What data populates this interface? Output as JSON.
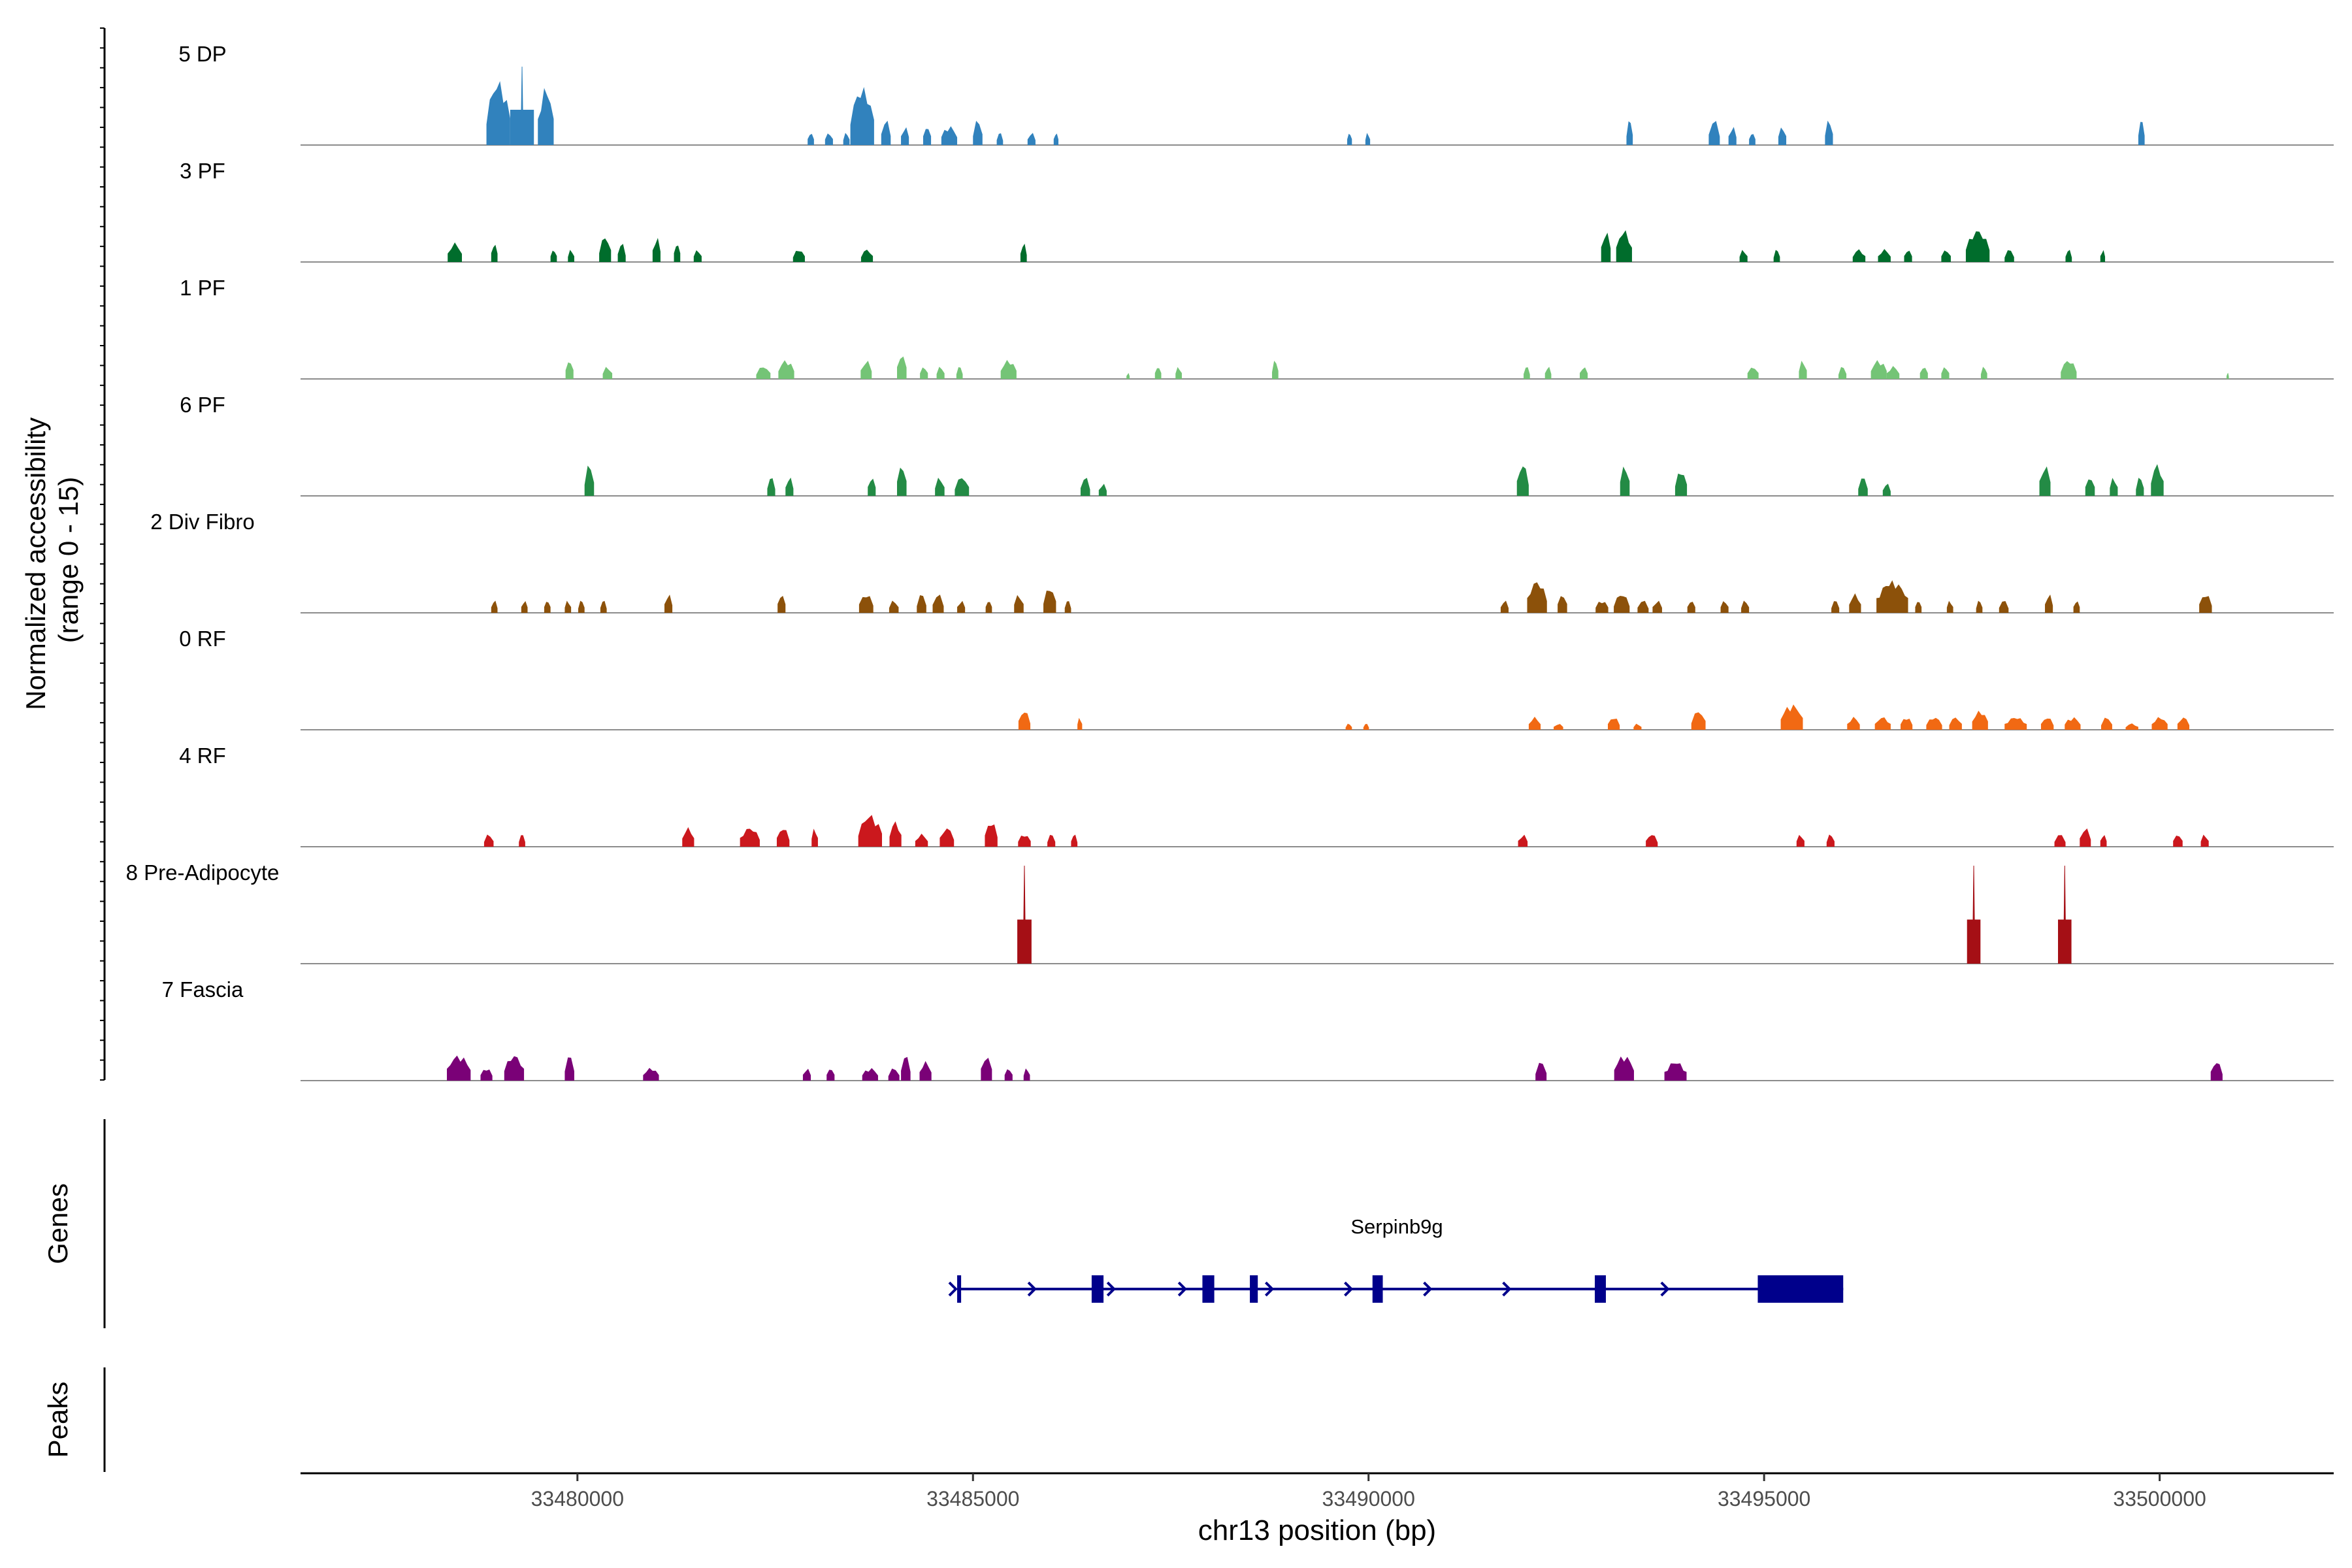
{
  "chart_data": {
    "type": "area",
    "title": "",
    "ylabel": "Normalized accessibility\n(range 0 - 15)",
    "ylabel_lines": [
      "Normalized accessibility",
      "(range 0 - 15)"
    ],
    "xlabel": "chr13 position (bp)",
    "xlim": [
      33476500,
      33502200
    ],
    "ylim": [
      0,
      15
    ],
    "x_ticks": [
      33480000,
      33485000,
      33490000,
      33495000,
      33500000
    ],
    "x_tick_labels": [
      "33480000",
      "33485000",
      "33490000",
      "33495000",
      "33500000"
    ],
    "tracks": [
      {
        "name": "5 DP",
        "color": "#3182bd",
        "peaks": [
          [
            33479000,
            300,
            10
          ],
          [
            33479300,
            300,
            12
          ],
          [
            33479600,
            200,
            9
          ],
          [
            33482950,
            80,
            2
          ],
          [
            33483180,
            100,
            2
          ],
          [
            33483400,
            80,
            2
          ],
          [
            33483600,
            300,
            9
          ],
          [
            33483900,
            120,
            4
          ],
          [
            33484140,
            100,
            3
          ],
          [
            33484420,
            100,
            3
          ],
          [
            33484700,
            200,
            3
          ],
          [
            33485060,
            120,
            4
          ],
          [
            33485340,
            80,
            2
          ],
          [
            33485740,
            100,
            2
          ],
          [
            33486050,
            60,
            2
          ],
          [
            33489760,
            60,
            2
          ],
          [
            33489990,
            60,
            2
          ],
          [
            33493300,
            80,
            4
          ],
          [
            33494370,
            140,
            4
          ],
          [
            33494600,
            100,
            3
          ],
          [
            33494850,
            80,
            2
          ],
          [
            33495230,
            100,
            3
          ],
          [
            33495820,
            100,
            4
          ],
          [
            33499770,
            80,
            4
          ]
        ]
      },
      {
        "name": "3 PF",
        "color": "#006d2c",
        "peaks": [
          [
            33478450,
            180,
            3
          ],
          [
            33478950,
            80,
            3
          ],
          [
            33479700,
            80,
            2
          ],
          [
            33479920,
            80,
            2
          ],
          [
            33480350,
            150,
            4
          ],
          [
            33480560,
            100,
            3
          ],
          [
            33481000,
            100,
            4
          ],
          [
            33481260,
            80,
            3
          ],
          [
            33481520,
            100,
            2
          ],
          [
            33482800,
            150,
            2
          ],
          [
            33483660,
            150,
            2
          ],
          [
            33485640,
            80,
            3
          ],
          [
            33493000,
            120,
            5
          ],
          [
            33493230,
            200,
            5
          ],
          [
            33494740,
            100,
            2
          ],
          [
            33495160,
            80,
            2
          ],
          [
            33496200,
            160,
            2
          ],
          [
            33496520,
            160,
            2
          ],
          [
            33496820,
            100,
            2
          ],
          [
            33497300,
            120,
            2
          ],
          [
            33497700,
            300,
            5
          ],
          [
            33498100,
            120,
            2
          ],
          [
            33498850,
            80,
            2
          ],
          [
            33499280,
            60,
            2
          ]
        ]
      },
      {
        "name": "1 PF",
        "color": "#74c476",
        "peaks": [
          [
            33479900,
            100,
            3
          ],
          [
            33480380,
            120,
            2
          ],
          [
            33482350,
            180,
            2
          ],
          [
            33482640,
            200,
            3
          ],
          [
            33483650,
            140,
            3
          ],
          [
            33484100,
            120,
            4
          ],
          [
            33484380,
            100,
            2
          ],
          [
            33484590,
            100,
            2
          ],
          [
            33484830,
            80,
            2
          ],
          [
            33485450,
            200,
            3
          ],
          [
            33486960,
            40,
            1
          ],
          [
            33487340,
            80,
            2
          ],
          [
            33487600,
            80,
            2
          ],
          [
            33488820,
            80,
            3
          ],
          [
            33492000,
            80,
            2
          ],
          [
            33492270,
            80,
            2
          ],
          [
            33492720,
            100,
            2
          ],
          [
            33494860,
            140,
            2
          ],
          [
            33495490,
            100,
            3
          ],
          [
            33495990,
            100,
            2
          ],
          [
            33496450,
            200,
            3
          ],
          [
            33496630,
            160,
            2
          ],
          [
            33497020,
            100,
            2
          ],
          [
            33497290,
            100,
            2
          ],
          [
            33497780,
            80,
            2
          ],
          [
            33498850,
            200,
            3
          ],
          [
            33500860,
            30,
            1
          ]
        ]
      },
      {
        "name": "6 PF",
        "color": "#238b45",
        "peaks": [
          [
            33480150,
            120,
            5
          ],
          [
            33482450,
            100,
            3
          ],
          [
            33482680,
            100,
            3
          ],
          [
            33483720,
            100,
            3
          ],
          [
            33484100,
            120,
            5
          ],
          [
            33484580,
            120,
            3
          ],
          [
            33484860,
            180,
            3
          ],
          [
            33486420,
            120,
            3
          ],
          [
            33486640,
            100,
            2
          ],
          [
            33491950,
            150,
            5
          ],
          [
            33493240,
            120,
            5
          ],
          [
            33493950,
            150,
            4
          ],
          [
            33496250,
            120,
            3
          ],
          [
            33496550,
            100,
            2
          ],
          [
            33498550,
            140,
            5
          ],
          [
            33499120,
            120,
            3
          ],
          [
            33499420,
            100,
            3
          ],
          [
            33499750,
            100,
            3
          ],
          [
            33499970,
            160,
            5
          ]
        ]
      },
      {
        "name": "2 Div Fibro",
        "color": "#8c510a",
        "peaks": [
          [
            33478950,
            80,
            2
          ],
          [
            33479330,
            80,
            2
          ],
          [
            33479620,
            80,
            2
          ],
          [
            33479880,
            80,
            2
          ],
          [
            33480050,
            80,
            2
          ],
          [
            33480330,
            80,
            2
          ],
          [
            33481150,
            100,
            3
          ],
          [
            33482580,
            100,
            3
          ],
          [
            33483650,
            180,
            3
          ],
          [
            33484000,
            120,
            2
          ],
          [
            33484350,
            120,
            3
          ],
          [
            33484560,
            140,
            3
          ],
          [
            33484850,
            100,
            2
          ],
          [
            33485200,
            80,
            2
          ],
          [
            33485580,
            120,
            3
          ],
          [
            33485970,
            160,
            4
          ],
          [
            33486200,
            80,
            2
          ],
          [
            33491720,
            100,
            2
          ],
          [
            33492130,
            250,
            5
          ],
          [
            33492450,
            120,
            3
          ],
          [
            33492950,
            160,
            2
          ],
          [
            33493200,
            200,
            3
          ],
          [
            33493470,
            140,
            2
          ],
          [
            33493650,
            120,
            2
          ],
          [
            33494080,
            100,
            2
          ],
          [
            33494500,
            100,
            2
          ],
          [
            33494760,
            100,
            2
          ],
          [
            33495900,
            100,
            2
          ],
          [
            33496150,
            150,
            3
          ],
          [
            33496620,
            400,
            5
          ],
          [
            33496950,
            80,
            2
          ],
          [
            33497350,
            80,
            2
          ],
          [
            33497720,
            80,
            2
          ],
          [
            33498030,
            120,
            2
          ],
          [
            33498600,
            100,
            3
          ],
          [
            33498950,
            80,
            2
          ],
          [
            33500580,
            160,
            3
          ]
        ]
      },
      {
        "name": "0 RF",
        "color": "#f16913",
        "peaks": [
          [
            33485650,
            150,
            3
          ],
          [
            33486350,
            60,
            2
          ],
          [
            33489750,
            80,
            1
          ],
          [
            33489970,
            70,
            1
          ],
          [
            33492100,
            150,
            2
          ],
          [
            33492400,
            120,
            1
          ],
          [
            33493100,
            150,
            2
          ],
          [
            33493400,
            100,
            1
          ],
          [
            33494170,
            180,
            3
          ],
          [
            33495350,
            280,
            4
          ],
          [
            33496130,
            160,
            2
          ],
          [
            33496500,
            200,
            2
          ],
          [
            33496800,
            150,
            2
          ],
          [
            33497150,
            200,
            2
          ],
          [
            33497420,
            160,
            2
          ],
          [
            33497730,
            200,
            3
          ],
          [
            33498180,
            280,
            2
          ],
          [
            33498580,
            160,
            2
          ],
          [
            33498900,
            200,
            2
          ],
          [
            33499330,
            140,
            2
          ],
          [
            33499650,
            160,
            1
          ],
          [
            33500000,
            200,
            2
          ],
          [
            33500300,
            150,
            2
          ]
        ]
      },
      {
        "name": "4 RF",
        "color": "#cb181d",
        "peaks": [
          [
            33478880,
            120,
            2
          ],
          [
            33479300,
            80,
            2
          ],
          [
            33481400,
            150,
            3
          ],
          [
            33482180,
            250,
            3
          ],
          [
            33482600,
            160,
            3
          ],
          [
            33483000,
            80,
            3
          ],
          [
            33483700,
            300,
            5
          ],
          [
            33484020,
            150,
            4
          ],
          [
            33484350,
            160,
            2
          ],
          [
            33484670,
            180,
            3
          ],
          [
            33485230,
            160,
            4
          ],
          [
            33485650,
            160,
            2
          ],
          [
            33485990,
            100,
            2
          ],
          [
            33486280,
            80,
            2
          ],
          [
            33491950,
            120,
            2
          ],
          [
            33493580,
            150,
            2
          ],
          [
            33495460,
            100,
            2
          ],
          [
            33495840,
            100,
            2
          ],
          [
            33498740,
            140,
            2
          ],
          [
            33499060,
            140,
            3
          ],
          [
            33499290,
            80,
            2
          ],
          [
            33500230,
            120,
            2
          ],
          [
            33500570,
            100,
            2
          ]
        ]
      },
      {
        "name": "8 Pre-Adipocyte",
        "color": "#a50f15",
        "peaks": [
          [
            33485650,
            180,
            15
          ],
          [
            33497650,
            170,
            15
          ],
          [
            33498800,
            170,
            15
          ]
        ]
      },
      {
        "name": "7 Fascia",
        "color": "#7a0177",
        "peaks": [
          [
            33478500,
            300,
            4
          ],
          [
            33478850,
            150,
            2
          ],
          [
            33479200,
            250,
            4
          ],
          [
            33479900,
            120,
            4
          ],
          [
            33480930,
            200,
            2
          ],
          [
            33482900,
            100,
            2
          ],
          [
            33483200,
            100,
            2
          ],
          [
            33483700,
            200,
            2
          ],
          [
            33484000,
            140,
            2
          ],
          [
            33484150,
            120,
            4
          ],
          [
            33484400,
            150,
            3
          ],
          [
            33485170,
            140,
            4
          ],
          [
            33485450,
            100,
            2
          ],
          [
            33485680,
            80,
            2
          ],
          [
            33492180,
            140,
            3
          ],
          [
            33493230,
            250,
            4
          ],
          [
            33493880,
            280,
            3
          ],
          [
            33500720,
            150,
            3
          ]
        ]
      }
    ],
    "genes": {
      "panel_label": "Genes",
      "gene_name": "Serpinb9g",
      "color": "#00008b",
      "start": 33484800,
      "end": 33496000,
      "strand": "+",
      "exons": [
        [
          33484800,
          33484850
        ],
        [
          33486500,
          33486650
        ],
        [
          33487900,
          33488050
        ],
        [
          33488500,
          33488600
        ],
        [
          33490050,
          33490180
        ],
        [
          33492860,
          33493000
        ],
        [
          33494920,
          33496000
        ]
      ],
      "arrows": [
        33484750,
        33485750,
        33486750,
        33487650,
        33488750,
        33489750,
        33490750,
        33491750,
        33493750
      ]
    },
    "peaks_panel": {
      "label": "Peaks"
    }
  }
}
